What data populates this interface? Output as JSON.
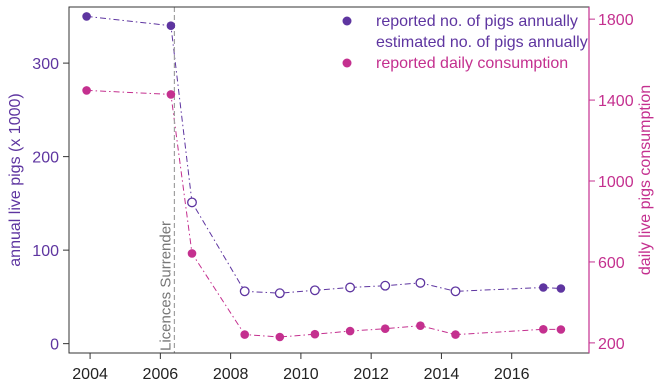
{
  "chart_data": {
    "type": "line",
    "x_ticks": [
      2004,
      2006,
      2008,
      2010,
      2012,
      2014,
      2016
    ],
    "xlim": [
      2003.4,
      2018.2
    ],
    "left_axis": {
      "label": "annual live pigs (x 1000)",
      "ticks": [
        0,
        100,
        200,
        300
      ],
      "ylim": [
        -10,
        360
      ],
      "color": "#5e35a0"
    },
    "right_axis": {
      "label": "daily live pigs consumption",
      "ticks": [
        200,
        600,
        1000,
        1400,
        1800
      ],
      "ylim": [
        150,
        1860
      ],
      "color": "#c4308f"
    },
    "vline": {
      "x": 2006.4,
      "label": "Licences Surrender",
      "color": "#a0a0a0"
    },
    "series": [
      {
        "name": "reported no. of pigs annually",
        "axis": "left",
        "color": "#5e35a0",
        "marker": "filled",
        "points": [
          [
            2003.9,
            350
          ],
          [
            2006.3,
            340
          ],
          [
            2016.9,
            60
          ],
          [
            2017.4,
            59
          ]
        ]
      },
      {
        "name": "estimated no. of pigs annually",
        "axis": "left",
        "color": "#5e35a0",
        "marker": "open",
        "points": [
          [
            2006.9,
            151
          ],
          [
            2008.4,
            56
          ],
          [
            2009.4,
            54
          ],
          [
            2010.4,
            57
          ],
          [
            2011.4,
            60
          ],
          [
            2012.4,
            62
          ],
          [
            2013.4,
            65
          ],
          [
            2014.4,
            56
          ]
        ]
      },
      {
        "name": "reported daily consumption",
        "axis": "right",
        "color": "#c4308f",
        "marker": "filled",
        "points": [
          [
            2003.9,
            1448
          ],
          [
            2006.3,
            1428
          ],
          [
            2006.9,
            642
          ],
          [
            2008.4,
            241
          ],
          [
            2009.4,
            229
          ],
          [
            2010.4,
            243
          ],
          [
            2011.4,
            258
          ],
          [
            2012.4,
            270
          ],
          [
            2013.4,
            285
          ],
          [
            2014.4,
            241
          ],
          [
            2016.9,
            267
          ],
          [
            2017.4,
            266
          ]
        ]
      }
    ],
    "connectors": [
      {
        "axis": "left",
        "color": "#5e35a0",
        "points": [
          [
            2003.9,
            350
          ],
          [
            2006.3,
            340
          ],
          [
            2006.9,
            151
          ],
          [
            2008.4,
            56
          ],
          [
            2009.4,
            54
          ],
          [
            2010.4,
            57
          ],
          [
            2011.4,
            60
          ],
          [
            2012.4,
            62
          ],
          [
            2013.4,
            65
          ],
          [
            2014.4,
            56
          ],
          [
            2016.9,
            60
          ],
          [
            2017.4,
            59
          ]
        ]
      },
      {
        "axis": "right",
        "color": "#c4308f",
        "points": [
          [
            2003.9,
            1448
          ],
          [
            2006.3,
            1428
          ],
          [
            2006.9,
            642
          ],
          [
            2008.4,
            241
          ],
          [
            2009.4,
            229
          ],
          [
            2010.4,
            243
          ],
          [
            2011.4,
            258
          ],
          [
            2012.4,
            270
          ],
          [
            2013.4,
            285
          ],
          [
            2014.4,
            241
          ],
          [
            2016.9,
            267
          ],
          [
            2017.4,
            266
          ]
        ]
      }
    ],
    "legend": {
      "placement": "top-right"
    },
    "grid": false
  }
}
